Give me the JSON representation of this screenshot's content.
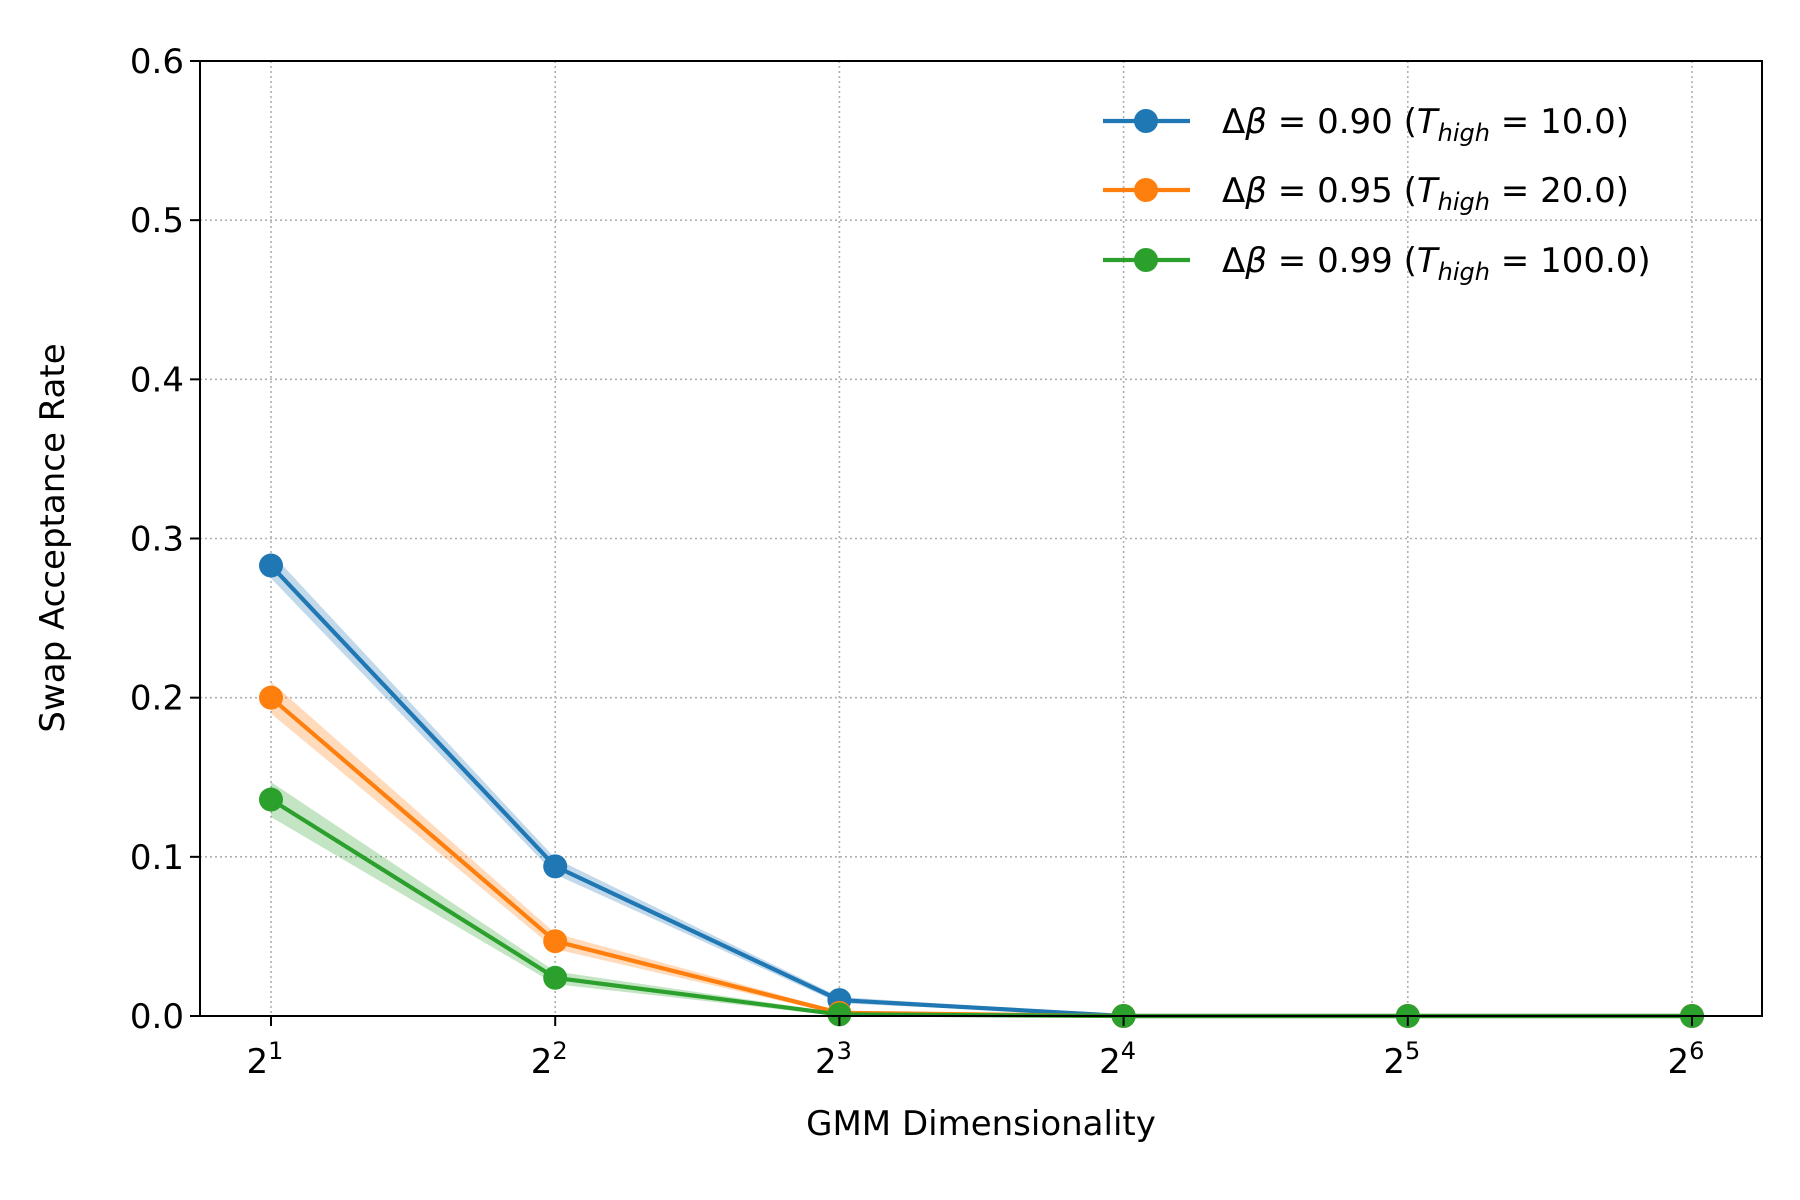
{
  "chart_data": {
    "type": "line",
    "title": "",
    "xlabel": "GMM Dimensionality",
    "ylabel": "Swap Acceptance Rate",
    "x": [
      2,
      4,
      8,
      16,
      32,
      64
    ],
    "x_scale": "log2",
    "xtick_labels": [
      {
        "base": "2",
        "exp": "1"
      },
      {
        "base": "2",
        "exp": "2"
      },
      {
        "base": "2",
        "exp": "3"
      },
      {
        "base": "2",
        "exp": "4"
      },
      {
        "base": "2",
        "exp": "5"
      },
      {
        "base": "2",
        "exp": "6"
      }
    ],
    "ylim": [
      0,
      0.6
    ],
    "yticks": [
      "0.0",
      "0.1",
      "0.2",
      "0.3",
      "0.4",
      "0.5",
      "0.6"
    ],
    "grid": true,
    "legend_position": "top-right",
    "series": [
      {
        "name": "Δβ = 0.90 (T_high = 10.0)",
        "legend_parts": {
          "delta": "Δ",
          "beta": "β",
          "value": "0.90",
          "t": "T",
          "sub": "high",
          "temp": "10.0"
        },
        "color": "#1f77b4",
        "values": [
          0.283,
          0.094,
          0.01,
          0.0,
          0.0,
          0.0
        ],
        "band": [
          0.008,
          0.005,
          0.002,
          0.0,
          0.0,
          0.0
        ]
      },
      {
        "name": "Δβ = 0.95 (T_high = 20.0)",
        "legend_parts": {
          "delta": "Δ",
          "beta": "β",
          "value": "0.95",
          "t": "T",
          "sub": "high",
          "temp": "20.0"
        },
        "color": "#ff7f0e",
        "values": [
          0.2,
          0.047,
          0.002,
          0.0,
          0.0,
          0.0
        ],
        "band": [
          0.01,
          0.005,
          0.001,
          0.0,
          0.0,
          0.0
        ]
      },
      {
        "name": "Δβ = 0.99 (T_high = 100.0)",
        "legend_parts": {
          "delta": "Δ",
          "beta": "β",
          "value": "0.99",
          "t": "T",
          "sub": "high",
          "temp": "100.0"
        },
        "color": "#2ca02c",
        "values": [
          0.136,
          0.024,
          0.001,
          0.0,
          0.0,
          0.0
        ],
        "band": [
          0.011,
          0.004,
          0.001,
          0.0,
          0.0,
          0.0
        ]
      }
    ]
  }
}
